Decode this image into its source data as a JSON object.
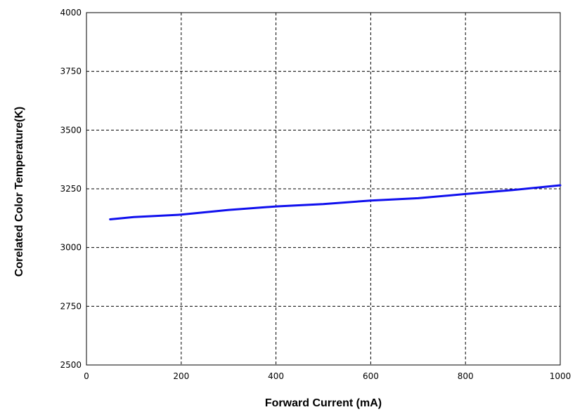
{
  "chart_data": {
    "type": "line",
    "title": "",
    "xlabel": "Forward Current (mA)",
    "ylabel": "Corelated Color Temperature(K)",
    "xlim": [
      0,
      1000
    ],
    "ylim": [
      2500,
      4000
    ],
    "xticks": [
      "0",
      "200",
      "400",
      "600",
      "800",
      "1000"
    ],
    "yticks": [
      "2500",
      "2750",
      "3000",
      "3250",
      "3500",
      "3750",
      "4000"
    ],
    "grid": true,
    "series": [
      {
        "color": "#1010ee",
        "x": [
          50,
          100,
          200,
          300,
          400,
          500,
          600,
          700,
          800,
          900,
          1000
        ],
        "y": [
          3120,
          3130,
          3140,
          3160,
          3175,
          3185,
          3200,
          3210,
          3228,
          3245,
          3265
        ]
      }
    ]
  }
}
